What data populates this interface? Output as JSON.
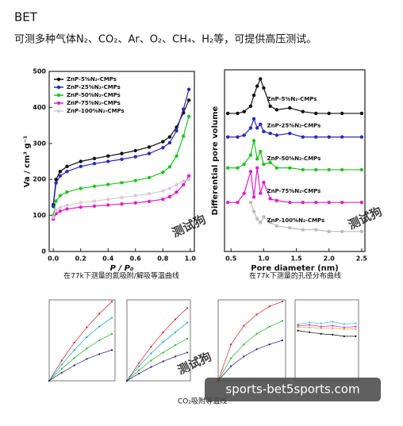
{
  "header": {
    "title": "BET",
    "subtitle": "可测多种气体N₂、CO₂、Ar、O₂、CH₄、H₂等，可提供高压测试。"
  },
  "captions": [
    "在77k下测量的氮吸附/解吸等温曲线",
    "在77k下测量的孔径分布曲线",
    "CO₂吸附等温线"
  ],
  "watermark": {
    "site": "sports-bet5sports.com",
    "stamp": "测试狗"
  },
  "chart_data": [
    {
      "type": "line",
      "xlabel": "P / P₀",
      "ylabel": "Va / cm³ g⁻¹",
      "legend": "upper left",
      "x": [
        0,
        0.02,
        0.05,
        0.1,
        0.2,
        0.3,
        0.4,
        0.5,
        0.6,
        0.7,
        0.8,
        0.85,
        0.9,
        0.95,
        0.99
      ],
      "xlim": [
        -0.03,
        1.03
      ],
      "ylim": [
        0,
        500
      ],
      "xticks": [
        {
          "value": 0,
          "label": "0.0"
        },
        {
          "value": 0.2,
          "label": "0.2"
        },
        {
          "value": 0.4,
          "label": "0.4"
        },
        {
          "value": 0.6,
          "label": "0.6"
        },
        {
          "value": 0.8,
          "label": "0.8"
        },
        {
          "value": 1,
          "label": "1.0"
        }
      ],
      "yticks": [
        0,
        100,
        200,
        300,
        400,
        500
      ],
      "series": [
        {
          "name": "ZnP-5%N₂-CMPs",
          "color": "#111111",
          "values": [
            130,
            200,
            222,
            236,
            250,
            258,
            265,
            272,
            280,
            290,
            305,
            318,
            345,
            385,
            420
          ]
        },
        {
          "name": "ZnP-25%N₂-CMPs",
          "color": "#2a2ab8",
          "values": [
            125,
            190,
            210,
            222,
            236,
            244,
            250,
            256,
            263,
            272,
            288,
            302,
            335,
            395,
            450
          ]
        },
        {
          "name": "ZnP-50%N₂-CMPs",
          "color": "#22c322",
          "values": [
            100,
            140,
            155,
            165,
            175,
            181,
            186,
            191,
            197,
            205,
            220,
            235,
            265,
            320,
            375
          ]
        },
        {
          "name": "ZnP-75%N₂-CMPs",
          "color": "#e020c8",
          "values": [
            90,
            105,
            112,
            118,
            123,
            126,
            129,
            132,
            135,
            139,
            145,
            152,
            165,
            185,
            210
          ]
        },
        {
          "name": "ZnP-100%N₂-CMPs",
          "color": "#d8c8d8",
          "values": [
            95,
            115,
            122,
            128,
            135,
            140,
            145,
            150,
            155,
            160,
            168,
            175,
            185,
            195,
            200
          ]
        }
      ]
    },
    {
      "type": "line",
      "xlabel": "Pore diameter (nm)",
      "ylabel": "Differential pore volume",
      "legend": "curve",
      "x": [
        0.45,
        0.6,
        0.7,
        0.8,
        0.85,
        0.9,
        0.95,
        1.0,
        1.1,
        1.2,
        1.4,
        1.6,
        1.8,
        2.0,
        2.2,
        2.5
      ],
      "xlim": [
        0.4,
        2.55
      ],
      "ylim": [
        0,
        10
      ],
      "xticks": [
        0.5,
        {
          "value": 1,
          "label": "1.0"
        },
        1.5,
        {
          "value": 2,
          "label": "2.0"
        },
        2.5
      ],
      "series": [
        {
          "name": "ZnP-5%N₂-CMPs",
          "color": "#111111",
          "values": [
            7.6,
            7.6,
            7.7,
            8.0,
            8.6,
            9.1,
            9.5,
            9.0,
            8.0,
            7.8,
            7.9,
            7.7,
            7.6,
            7.6,
            7.6,
            7.6
          ]
        },
        {
          "name": "ZnP-25%N₂-CMPs",
          "color": "#2a2ab8",
          "values": [
            6.3,
            6.3,
            6.4,
            6.8,
            7.3,
            6.8,
            7.0,
            6.6,
            6.5,
            6.4,
            6.5,
            6.3,
            6.3,
            6.3,
            6.3,
            6.3
          ]
        },
        {
          "name": "ZnP-50%N₂-CMPs",
          "color": "#22c322",
          "values": [
            4.6,
            4.6,
            4.8,
            5.3,
            6.1,
            5.1,
            5.5,
            4.8,
            4.9,
            4.6,
            4.6,
            4.5,
            4.5,
            4.5,
            4.5,
            4.5
          ]
        },
        {
          "name": "ZnP-75%N₂-CMPs",
          "color": "#e020c8",
          "values": [
            2.7,
            2.7,
            3.2,
            4.4,
            3.0,
            4.6,
            3.2,
            3.8,
            2.9,
            2.8,
            2.7,
            2.7,
            2.7,
            2.7,
            2.7,
            2.7
          ]
        },
        {
          "name": "ZnP-100%N₂-CMPs",
          "color": "#bbbbbb",
          "values": [
            null,
            null,
            null,
            2.7,
            2.2,
            1.8,
            1.6,
            1.9,
            1.6,
            1.4,
            1.3,
            1.2,
            1.2,
            1.1,
            1.1,
            1.1
          ]
        }
      ]
    },
    {
      "type": "line",
      "x": [
        0,
        0.2,
        0.4,
        0.6,
        0.8,
        1.0
      ],
      "xlim": [
        0,
        1.05
      ],
      "ylim": [
        0,
        100
      ],
      "series": [
        {
          "color": "#d02020",
          "values": [
            0,
            25,
            47,
            66,
            83,
            98
          ]
        },
        {
          "color": "#20a0d0",
          "values": [
            0,
            20,
            38,
            54,
            67,
            78
          ]
        },
        {
          "color": "#22b022",
          "values": [
            0,
            15,
            28,
            40,
            50,
            58
          ]
        },
        {
          "color": "#1a1a80",
          "values": [
            0,
            10,
            19,
            27,
            33,
            38
          ]
        }
      ]
    },
    {
      "type": "line",
      "x": [
        0,
        0.2,
        0.4,
        0.6,
        0.8,
        1.0
      ],
      "xlim": [
        0,
        1.05
      ],
      "ylim": [
        0,
        100
      ],
      "series": [
        {
          "color": "#d02020",
          "values": [
            0,
            22,
            42,
            60,
            76,
            90
          ]
        },
        {
          "color": "#20a0d0",
          "values": [
            0,
            18,
            34,
            48,
            60,
            72
          ]
        },
        {
          "color": "#22b022",
          "values": [
            0,
            13,
            25,
            35,
            44,
            52
          ]
        },
        {
          "color": "#1a1a80",
          "values": [
            0,
            9,
            17,
            24,
            30,
            35
          ]
        }
      ]
    },
    {
      "type": "line",
      "x": [
        0,
        0.2,
        0.4,
        0.6,
        0.8,
        1.0
      ],
      "xlim": [
        0,
        1.05
      ],
      "ylim": [
        0,
        100
      ],
      "series": [
        {
          "color": "#d02020",
          "values": [
            0,
            45,
            68,
            82,
            92,
            98
          ]
        },
        {
          "color": "#22b022",
          "values": [
            0,
            28,
            45,
            58,
            67,
            74
          ]
        },
        {
          "color": "#1a1a80",
          "values": [
            0,
            18,
            30,
            39,
            45,
            50
          ]
        }
      ]
    },
    {
      "type": "line",
      "x": [
        0,
        0.2,
        0.4,
        0.6,
        0.8,
        1.0
      ],
      "xlim": [
        -0.05,
        1.05
      ],
      "ylim": [
        0,
        100
      ],
      "series": [
        {
          "color": "#40c0d0",
          "values": [
            70,
            72,
            71,
            73,
            70,
            71
          ]
        },
        {
          "color": "#d020c0",
          "values": [
            68,
            69,
            67,
            68,
            66,
            67
          ]
        },
        {
          "color": "#d0a020",
          "values": [
            66,
            66,
            65,
            65,
            64,
            64
          ]
        },
        {
          "color": "#111111",
          "values": [
            62,
            60,
            58,
            57,
            55,
            55
          ]
        }
      ]
    }
  ]
}
